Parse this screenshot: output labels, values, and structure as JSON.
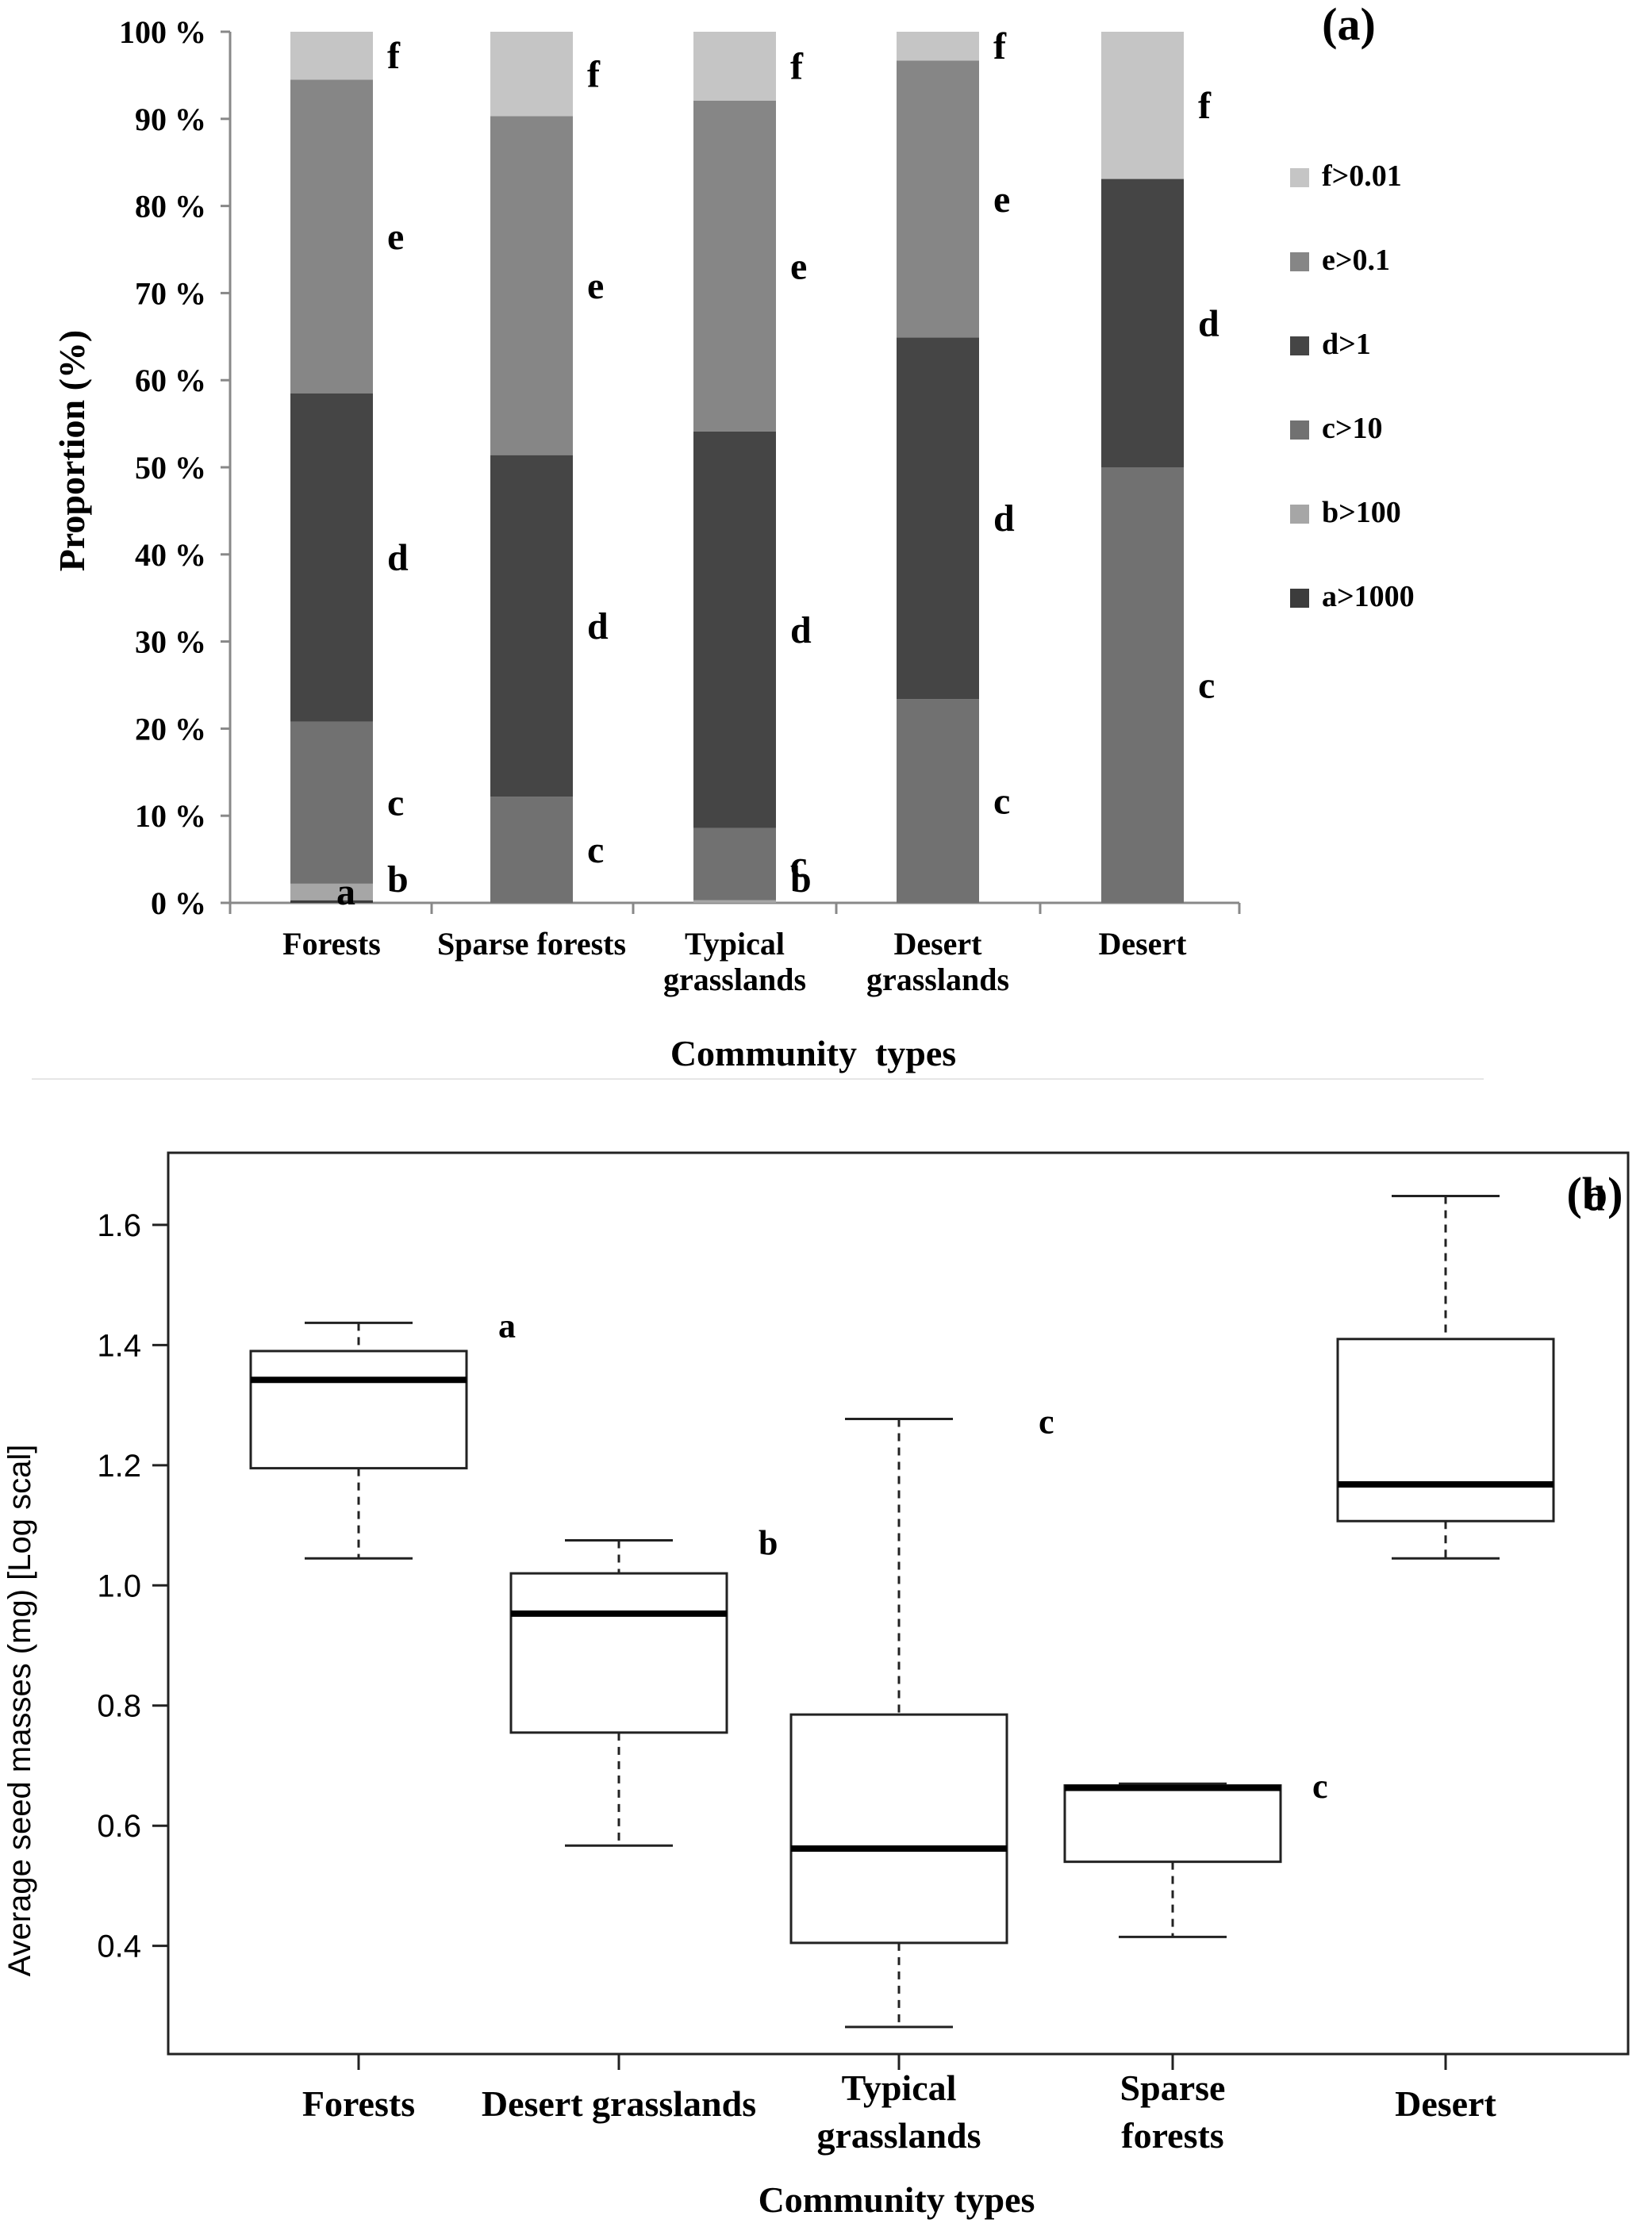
{
  "chart_data": [
    {
      "panel": "(a)",
      "type": "bar",
      "stacked": true,
      "ylabel": "Proportion  (%)",
      "xlabel": "Community  types",
      "ylim": [
        0,
        100
      ],
      "yticks": [
        "0 %",
        "10 %",
        "20 %",
        "30 %",
        "40 %",
        "50 %",
        "60 %",
        "70 %",
        "80 %",
        "90 %",
        "100 %"
      ],
      "categories": [
        {
          "name": "Forests",
          "lines": [
            "Forests"
          ]
        },
        {
          "name": "Sparse forests",
          "lines": [
            "Sparse forests"
          ]
        },
        {
          "name": "Typical grasslands",
          "lines": [
            "Typical",
            "grasslands"
          ]
        },
        {
          "name": "Desert grasslands",
          "lines": [
            "Desert",
            "grasslands"
          ]
        },
        {
          "name": "Desert",
          "lines": [
            "Desert"
          ]
        }
      ],
      "series": [
        {
          "key": "a",
          "name": "a>1000",
          "color": "#3c3c3c",
          "values": [
            0.3,
            0,
            0,
            0,
            0
          ]
        },
        {
          "key": "b",
          "name": "b>100",
          "color": "#a6a6a6",
          "values": [
            1.9,
            0,
            0.3,
            0,
            0
          ]
        },
        {
          "key": "c",
          "name": "c>10",
          "color": "#717171",
          "values": [
            18.6,
            12.2,
            8.3,
            23.4,
            50.0
          ]
        },
        {
          "key": "d",
          "name": "d>1",
          "color": "#454545",
          "values": [
            37.7,
            39.2,
            45.5,
            41.5,
            33.1
          ]
        },
        {
          "key": "e",
          "name": "e>0.1",
          "color": "#868686",
          "values": [
            36.0,
            38.9,
            38.0,
            31.8,
            0
          ]
        },
        {
          "key": "f",
          "name": "f>0.01",
          "color": "#c5c5c5",
          "values": [
            5.5,
            9.7,
            7.9,
            3.3,
            16.9
          ]
        }
      ],
      "segment_labels": [
        [
          "a",
          "b",
          "c",
          "d",
          "e",
          "f"
        ],
        [
          "c",
          "d",
          "e",
          "f"
        ],
        [
          "b",
          "c",
          "d",
          "e",
          "f"
        ],
        [
          "c",
          "d",
          "e",
          "f"
        ],
        [
          "c",
          "d",
          "f"
        ]
      ],
      "legend_order": [
        "f",
        "e",
        "d",
        "c",
        "b",
        "a"
      ]
    },
    {
      "panel": "(b)",
      "type": "boxplot",
      "ylabel": "Average seed masses (mg) [Log scal]",
      "xlabel": "Community types",
      "ylim": [
        0.22,
        1.72
      ],
      "yticks": [
        0.4,
        0.6,
        0.8,
        1.0,
        1.2,
        1.4,
        1.6
      ],
      "ytick_labels": [
        "0.4",
        "0.6",
        "0.8",
        "1.0",
        "1.2",
        "1.4",
        "1.6"
      ],
      "categories": [
        {
          "name": "Forests",
          "lines": [
            "Forests"
          ]
        },
        {
          "name": "Desert grasslands",
          "lines": [
            "Desert grasslands"
          ]
        },
        {
          "name": "Typical grasslands",
          "lines": [
            "Typical",
            "grasslands"
          ]
        },
        {
          "name": "Sparse forests",
          "lines": [
            "Sparse",
            "forests"
          ]
        },
        {
          "name": "Desert",
          "lines": [
            "Desert"
          ]
        }
      ],
      "boxes": [
        {
          "min": 1.045,
          "q1": 1.195,
          "median": 1.342,
          "q3": 1.39,
          "max": 1.437,
          "label": "a"
        },
        {
          "min": 0.567,
          "q1": 0.755,
          "median": 0.953,
          "q3": 1.02,
          "max": 1.075,
          "label": "b"
        },
        {
          "min": 0.265,
          "q1": 0.405,
          "median": 0.562,
          "q3": 0.785,
          "max": 1.277,
          "label": "c"
        },
        {
          "min": 0.415,
          "q1": 0.54,
          "median": 0.663,
          "q3": 0.667,
          "max": 0.67,
          "label": "c"
        },
        {
          "min": 1.045,
          "q1": 1.107,
          "median": 1.168,
          "q3": 1.41,
          "max": 1.648,
          "label": "d"
        }
      ]
    }
  ]
}
